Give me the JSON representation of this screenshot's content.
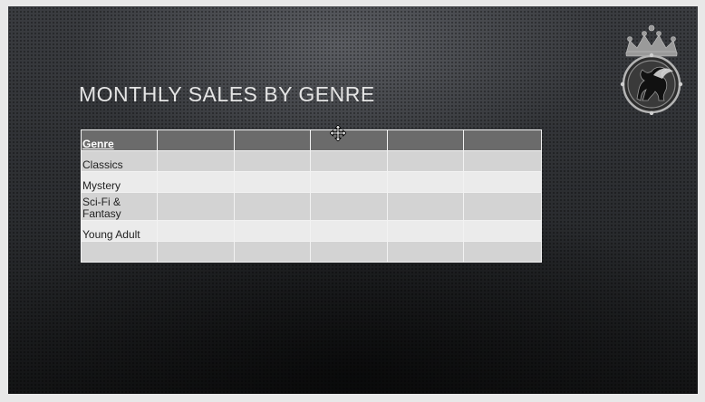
{
  "slide": {
    "title": "MONTHLY SALES BY GENRE"
  },
  "table": {
    "header": [
      "Genre",
      "",
      "",
      "",
      "",
      ""
    ],
    "rows": [
      [
        "Classics",
        "",
        "",
        "",
        "",
        ""
      ],
      [
        "Mystery",
        "",
        "",
        "",
        "",
        ""
      ],
      [
        "Sci-Fi &\nFantasy",
        "",
        "",
        "",
        "",
        ""
      ],
      [
        "Young Adult",
        "",
        "",
        "",
        "",
        ""
      ],
      [
        "",
        "",
        "",
        "",
        "",
        ""
      ]
    ]
  },
  "colors": {
    "header_fill": "#6b6b6b",
    "row_band_dark": "#d3d3d3",
    "row_band_light": "#ebebeb",
    "title_text": "#e4e4e4"
  },
  "icons": {
    "logo": "crowned-griffin-emblem-icon",
    "cursor": "move-cursor-icon"
  }
}
